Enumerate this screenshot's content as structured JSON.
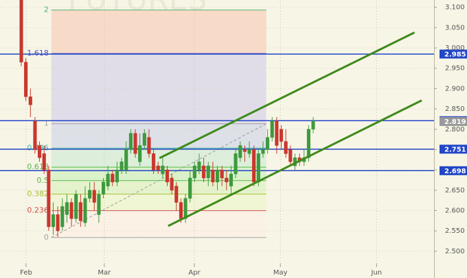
{
  "chart_data": {
    "type": "candlestick",
    "watermark": "FUTURES",
    "up_color": "#3d9a3d",
    "down_color": "#c8372d",
    "xlim": [
      -4.67,
      90.5
    ],
    "xticks": [
      {
        "value": 1.05,
        "label": "Feb"
      },
      {
        "value": 18.2,
        "label": "Mar"
      },
      {
        "value": 37.95,
        "label": "Apr"
      },
      {
        "value": 56.8,
        "label": "May"
      },
      {
        "value": 77.9,
        "label": "Jun"
      }
    ],
    "ylim": [
      2.434,
      3.118
    ],
    "yticks": [
      {
        "value": 2.5,
        "label": "2.500"
      },
      {
        "value": 2.55,
        "label": "2.550"
      },
      {
        "value": 2.6,
        "label": "2.600"
      },
      {
        "value": 2.65,
        "label": "2.650"
      },
      {
        "value": 2.7,
        "label": "2.700"
      },
      {
        "value": 2.75,
        "label": "2.750"
      },
      {
        "value": 2.8,
        "label": "2.800"
      },
      {
        "value": 2.85,
        "label": "2.850"
      },
      {
        "value": 2.9,
        "label": "2.900"
      },
      {
        "value": 2.95,
        "label": "2.950"
      },
      {
        "value": 3.0,
        "label": "3.000"
      },
      {
        "value": 3.05,
        "label": "3.050"
      },
      {
        "value": 3.1,
        "label": "3.100"
      }
    ],
    "grid": true,
    "open": [
      3.118,
      2.965,
      2.88,
      2.82,
      2.76,
      2.74,
      2.7,
      2.56,
      2.59,
      2.56,
      2.59,
      2.62,
      2.58,
      2.62,
      2.57,
      2.63,
      2.65,
      2.59,
      2.64,
      2.66,
      2.69,
      2.67,
      2.7,
      2.7,
      2.75,
      2.79,
      2.72,
      2.76,
      2.78,
      2.74,
      2.71,
      2.69,
      2.7,
      2.68,
      2.66,
      2.62,
      2.58,
      2.63,
      2.68,
      2.7,
      2.71,
      2.68,
      2.7,
      2.67,
      2.7,
      2.68,
      2.66,
      2.69,
      2.73,
      2.75,
      2.74,
      2.75,
      2.67,
      2.74,
      2.75,
      2.78,
      2.82,
      2.8,
      2.77,
      2.75,
      2.71,
      2.73,
      2.72,
      2.73,
      2.8
    ],
    "high": [
      3.118,
      2.975,
      2.9,
      2.83,
      2.77,
      2.76,
      2.71,
      2.62,
      2.61,
      2.63,
      2.64,
      2.63,
      2.65,
      2.64,
      2.66,
      2.67,
      2.67,
      2.65,
      2.68,
      2.71,
      2.7,
      2.72,
      2.73,
      2.77,
      2.8,
      2.8,
      2.79,
      2.8,
      2.8,
      2.75,
      2.72,
      2.73,
      2.71,
      2.69,
      2.67,
      2.63,
      2.64,
      2.7,
      2.72,
      2.74,
      2.73,
      2.72,
      2.72,
      2.71,
      2.71,
      2.7,
      2.71,
      2.75,
      2.77,
      2.76,
      2.77,
      2.76,
      2.75,
      2.77,
      2.8,
      2.83,
      2.83,
      2.81,
      2.8,
      2.76,
      2.74,
      2.74,
      2.75,
      2.81,
      2.83
    ],
    "low": [
      2.955,
      2.87,
      2.83,
      2.74,
      2.72,
      2.69,
      2.55,
      2.54,
      2.535,
      2.55,
      2.57,
      2.56,
      2.57,
      2.56,
      2.56,
      2.62,
      2.6,
      2.57,
      2.63,
      2.65,
      2.66,
      2.66,
      2.69,
      2.69,
      2.74,
      2.73,
      2.71,
      2.75,
      2.73,
      2.69,
      2.69,
      2.68,
      2.66,
      2.64,
      2.6,
      2.57,
      2.57,
      2.62,
      2.67,
      2.69,
      2.67,
      2.66,
      2.66,
      2.65,
      2.66,
      2.65,
      2.64,
      2.68,
      2.72,
      2.72,
      2.73,
      2.66,
      2.66,
      2.73,
      2.74,
      2.77,
      2.74,
      2.75,
      2.73,
      2.71,
      2.7,
      2.71,
      2.71,
      2.72,
      2.79
    ],
    "close": [
      2.965,
      2.88,
      2.86,
      2.75,
      2.73,
      2.7,
      2.56,
      2.59,
      2.55,
      2.61,
      2.62,
      2.58,
      2.64,
      2.575,
      2.63,
      2.65,
      2.62,
      2.64,
      2.67,
      2.69,
      2.67,
      2.7,
      2.72,
      2.75,
      2.79,
      2.74,
      2.76,
      2.79,
      2.74,
      2.7,
      2.7,
      2.71,
      2.67,
      2.65,
      2.62,
      2.58,
      2.63,
      2.68,
      2.71,
      2.72,
      2.68,
      2.71,
      2.67,
      2.7,
      2.68,
      2.67,
      2.69,
      2.74,
      2.76,
      2.745,
      2.75,
      2.67,
      2.74,
      2.75,
      2.78,
      2.82,
      2.76,
      2.77,
      2.74,
      2.72,
      2.73,
      2.72,
      2.73,
      2.8,
      2.82
    ],
    "fib": {
      "low": 2.5337,
      "high": 2.8135,
      "x": [
        6.6,
        53.7
      ],
      "levels": [
        0,
        0.236,
        0.382,
        0.5,
        0.618,
        0.786,
        1,
        1.618,
        2
      ],
      "line_colors": [
        "#a0a0a0",
        "#d0504a",
        "#a8c030",
        "#58b848",
        "#58b848",
        "#40b0a0",
        "#a0a0a0",
        "#5050c8",
        "#50b070"
      ],
      "band_colors": [
        "#fbf0e4",
        "#eef5cf",
        "#e2f2c8",
        "#d6f0c4",
        "#d8ecd8",
        "#d9dce8",
        "#dcd8e8",
        "#f7d6c2"
      ]
    },
    "trend_color": "#3f8a1c",
    "trend_lines": [
      {
        "x": [
          30.3,
          86.2
        ],
        "y": [
          2.729,
          3.038
        ]
      },
      {
        "x": [
          32.2,
          87.8
        ],
        "y": [
          2.562,
          2.871
        ]
      }
    ],
    "price_lines": [
      {
        "value": 2.985,
        "color": "#2146c7"
      },
      {
        "value": 2.821,
        "color": "#2146c7"
      },
      {
        "value": 2.751,
        "color": "#2146c7"
      },
      {
        "value": 2.698,
        "color": "#2146c7"
      }
    ],
    "last_price": {
      "value": 2.819,
      "color": "#9a9a9a"
    }
  }
}
